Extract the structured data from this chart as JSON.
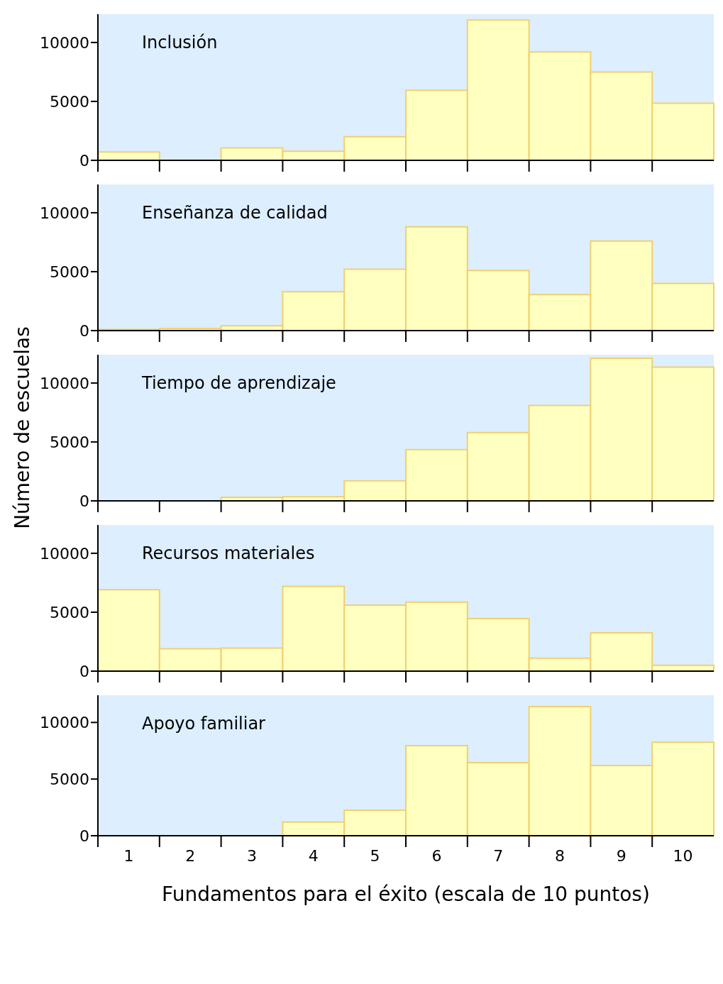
{
  "chart_data": [
    {
      "type": "histogram",
      "title": "Inclusión",
      "bins": [
        0.5,
        1.5,
        2.5,
        3.5,
        4.5,
        5.5,
        6.5,
        7.5,
        8.5,
        9.5,
        10.5
      ],
      "values": [
        700,
        0,
        1050,
        760,
        2000,
        5950,
        11900,
        9200,
        7500,
        4850
      ],
      "color": "#ffffc0",
      "xlim": [
        0.5,
        10.5
      ],
      "ylim": [
        0,
        12400
      ],
      "yticks": [
        0,
        5000,
        10000
      ],
      "xticks": [
        {
          "value": 0.5,
          "label": null
        },
        {
          "value": 1.5,
          "label": null
        },
        {
          "value": 2.5,
          "label": null
        },
        {
          "value": 3.5,
          "label": null
        },
        {
          "value": 4.5,
          "label": null
        },
        {
          "value": 5.5,
          "label": null
        },
        {
          "value": 6.5,
          "label": null
        },
        {
          "value": 7.5,
          "label": null
        },
        {
          "value": 8.5,
          "label": null
        },
        {
          "value": 9.5,
          "label": null
        }
      ],
      "tick_labels": "y"
    },
    {
      "type": "histogram",
      "title": "Enseñanza de calidad",
      "bins": [
        0.5,
        1.5,
        2.5,
        3.5,
        4.5,
        5.5,
        6.5,
        7.5,
        8.5,
        9.5,
        10.5
      ],
      "values": [
        100,
        180,
        400,
        3300,
        5200,
        8800,
        5100,
        3050,
        7600,
        4000
      ],
      "color": "#ffffc0",
      "xlim": [
        0.5,
        10.5
      ],
      "ylim": [
        0,
        12400
      ],
      "yticks": [
        0,
        5000,
        10000
      ],
      "xticks": [
        {
          "value": 0.5,
          "label": null
        },
        {
          "value": 1.5,
          "label": null
        },
        {
          "value": 2.5,
          "label": null
        },
        {
          "value": 3.5,
          "label": null
        },
        {
          "value": 4.5,
          "label": null
        },
        {
          "value": 5.5,
          "label": null
        },
        {
          "value": 6.5,
          "label": null
        },
        {
          "value": 7.5,
          "label": null
        },
        {
          "value": 8.5,
          "label": null
        },
        {
          "value": 9.5,
          "label": null
        }
      ],
      "tick_labels": "y"
    },
    {
      "type": "histogram",
      "title": "Tiempo de aprendizaje",
      "ylabel": "Número de escuelas",
      "bins": [
        0.5,
        1.5,
        2.5,
        3.5,
        4.5,
        5.5,
        6.5,
        7.5,
        8.5,
        9.5,
        10.5
      ],
      "values": [
        0,
        0,
        300,
        350,
        1700,
        4350,
        5800,
        8100,
        12100,
        11350
      ],
      "color": "#ffffc0",
      "xlim": [
        0.5,
        10.5
      ],
      "ylim": [
        0,
        12400
      ],
      "yticks": [
        0,
        5000,
        10000
      ],
      "xticks": [
        {
          "value": 0.5,
          "label": null
        },
        {
          "value": 1.5,
          "label": null
        },
        {
          "value": 2.5,
          "label": null
        },
        {
          "value": 3.5,
          "label": null
        },
        {
          "value": 4.5,
          "label": null
        },
        {
          "value": 5.5,
          "label": null
        },
        {
          "value": 6.5,
          "label": null
        },
        {
          "value": 7.5,
          "label": null
        },
        {
          "value": 8.5,
          "label": null
        },
        {
          "value": 9.5,
          "label": null
        }
      ],
      "tick_labels": "y"
    },
    {
      "type": "histogram",
      "title": "Recursos materiales",
      "bins": [
        0.5,
        1.5,
        2.5,
        3.5,
        4.5,
        5.5,
        6.5,
        7.5,
        8.5,
        9.5,
        10.5
      ],
      "values": [
        6900,
        1900,
        1950,
        7200,
        5600,
        5850,
        4450,
        1100,
        3250,
        500
      ],
      "color": "#ffffc0",
      "xlim": [
        0.5,
        10.5
      ],
      "ylim": [
        0,
        12400
      ],
      "yticks": [
        0,
        5000,
        10000
      ],
      "xticks": [
        {
          "value": 0.5,
          "label": null
        },
        {
          "value": 1.5,
          "label": null
        },
        {
          "value": 2.5,
          "label": null
        },
        {
          "value": 3.5,
          "label": null
        },
        {
          "value": 4.5,
          "label": null
        },
        {
          "value": 5.5,
          "label": null
        },
        {
          "value": 6.5,
          "label": null
        },
        {
          "value": 7.5,
          "label": null
        },
        {
          "value": 8.5,
          "label": null
        },
        {
          "value": 9.5,
          "label": null
        }
      ],
      "tick_labels": "y"
    },
    {
      "type": "histogram",
      "title": "Apoyo familiar",
      "xlabel": "Fundamentos para el éxito (escala de 10 puntos)",
      "bins": [
        0.5,
        1.5,
        2.5,
        3.5,
        4.5,
        5.5,
        6.5,
        7.5,
        8.5,
        9.5,
        10.5
      ],
      "values": [
        0,
        0,
        0,
        1200,
        2250,
        7950,
        6450,
        11400,
        6200,
        8250
      ],
      "color": "#ffffc0",
      "xlim": [
        0.5,
        10.5
      ],
      "ylim": [
        0,
        12400
      ],
      "yticks": [
        0,
        5000,
        10000
      ],
      "xticks": [
        {
          "value": 0.5,
          "label": null
        },
        {
          "value": 1,
          "label": "1"
        },
        {
          "value": 1.5,
          "label": null
        },
        {
          "value": 2,
          "label": "2"
        },
        {
          "value": 2.5,
          "label": null
        },
        {
          "value": 3,
          "label": "3"
        },
        {
          "value": 3.5,
          "label": null
        },
        {
          "value": 4,
          "label": "4"
        },
        {
          "value": 4.5,
          "label": null
        },
        {
          "value": 5,
          "label": "5"
        },
        {
          "value": 5.5,
          "label": null
        },
        {
          "value": 6,
          "label": "6"
        },
        {
          "value": 6.5,
          "label": null
        },
        {
          "value": 7,
          "label": "7"
        },
        {
          "value": 7.5,
          "label": null
        },
        {
          "value": 8,
          "label": "8"
        },
        {
          "value": 8.5,
          "label": null
        },
        {
          "value": 9,
          "label": "9"
        },
        {
          "value": 9.5,
          "label": null
        },
        {
          "value": 10,
          "label": "10"
        }
      ]
    }
  ]
}
